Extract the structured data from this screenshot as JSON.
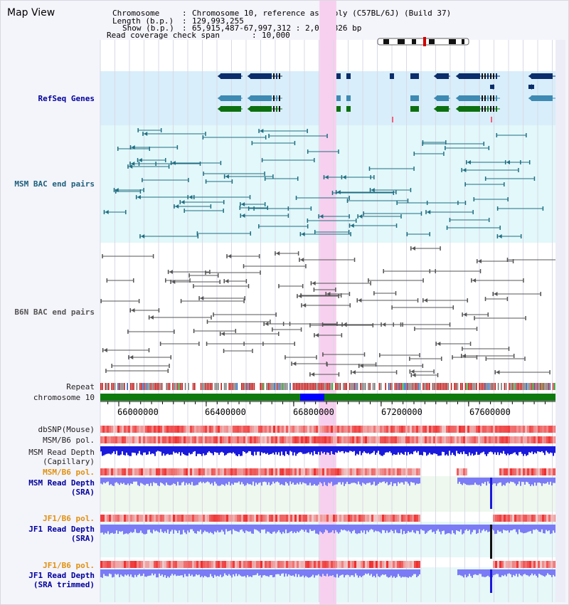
{
  "view_title": "Map View",
  "header": {
    "chromosome_key": "Chromosome",
    "chromosome_value": "Chromosome 10, reference assembly (C57BL/6J) (Build 37)",
    "length_key": "Length (b.p.)",
    "length_value": "129,993,255",
    "show_key": "Show (b.p.)",
    "show_value": "65,915,487-67,997,312 : 2,081,826 bp",
    "coverage_key": "Read coverage check span",
    "coverage_value": "10,000"
  },
  "tracks": {
    "refseq": "RefSeq Genes",
    "msm_bac": "MSM BAC end pairs",
    "b6n_bac": "B6N BAC end pairs",
    "repeat": "Repeat",
    "chromosome": "chromosome 10",
    "dbsnp": "dbSNP(Mouse)",
    "msm_b6_pol_1": "MSM/B6 pol.",
    "msm_depth_cap_1": "MSM Read Depth",
    "msm_depth_cap_2": "(Capillary)",
    "msm_b6_pol_2": "MSM/B6 pol.",
    "msm_depth_sra_1": "MSM Read Depth",
    "msm_depth_sra_2": "(SRA)",
    "jf1_b6_pol_1": "JF1/B6 pol.",
    "jf1_depth_sra_1": "JF1 Read Depth",
    "jf1_depth_sra_2": "(SRA)",
    "jf1_b6_pol_2": "JF1/B6 pol.",
    "jf1_depth_trim_1": "JF1 Read Depth",
    "jf1_depth_trim_2": "(SRA trimmed)"
  },
  "axis": {
    "range_bp": [
      65915487,
      67997312
    ],
    "ticks": [
      "66000000",
      "66400000",
      "66800000",
      "67200000",
      "67600000"
    ],
    "tick_values": [
      66000000,
      66400000,
      66800000,
      67200000,
      67600000
    ],
    "highlight_bp": [
      66918000,
      66995000
    ]
  },
  "colors": {
    "highlight": "#f8d0ef",
    "refseq_bg": "#d8eefa",
    "msm_bac_bg": "#e2f8fa",
    "gene_dark": "#0b2d6b",
    "gene_mid": "#3d8ab3",
    "gene_green": "#0c7010",
    "chrom_green": "#0e7a0e",
    "chrom_blue": "#0000ff",
    "bac_teal": "#1f6e82",
    "bac_gray": "#555555",
    "depth_blue": "#1a1adc",
    "depth_light": "#7b7bf5",
    "label_blue": "#00009c",
    "label_teal": "#1c5f7a",
    "label_orange": "#e09010"
  }
}
